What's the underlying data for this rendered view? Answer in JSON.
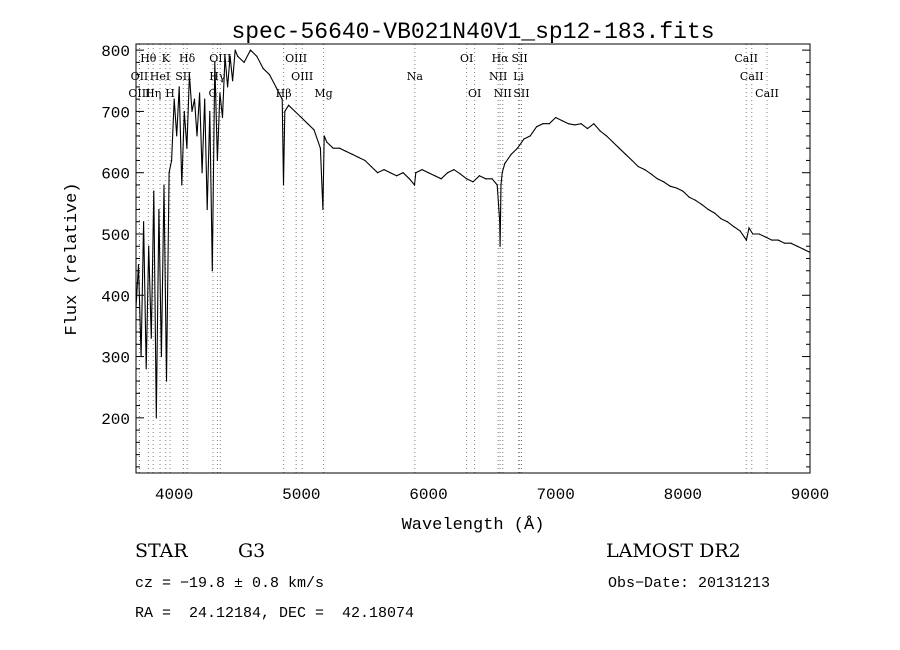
{
  "chart_data": {
    "type": "line",
    "title": "spec-56640-VB021N40V1_sp12-183.fits",
    "xlabel": "Wavelength (Å)",
    "ylabel": "Flux (relative)",
    "xlim": [
      3700,
      9000
    ],
    "ylim": [
      110,
      810
    ],
    "xticks": [
      4000,
      5000,
      6000,
      7000,
      8000,
      9000
    ],
    "yticks": [
      200,
      300,
      400,
      500,
      600,
      700,
      800
    ],
    "grid": false,
    "series": [
      {
        "color": "#000000",
        "x": [
          3700,
          3720,
          3740,
          3760,
          3780,
          3800,
          3820,
          3840,
          3860,
          3880,
          3900,
          3920,
          3940,
          3960,
          3980,
          4000,
          4020,
          4040,
          4060,
          4080,
          4100,
          4120,
          4140,
          4160,
          4180,
          4200,
          4220,
          4240,
          4260,
          4280,
          4300,
          4320,
          4340,
          4360,
          4380,
          4400,
          4420,
          4440,
          4460,
          4480,
          4500,
          4550,
          4600,
          4650,
          4700,
          4750,
          4800,
          4850,
          4860,
          4870,
          4900,
          4950,
          5000,
          5050,
          5100,
          5150,
          5170,
          5180,
          5200,
          5250,
          5300,
          5350,
          5400,
          5450,
          5500,
          5550,
          5600,
          5650,
          5700,
          5750,
          5800,
          5850,
          5890,
          5900,
          5950,
          6000,
          6050,
          6100,
          6150,
          6200,
          6250,
          6300,
          6350,
          6400,
          6450,
          6500,
          6540,
          6560,
          6563,
          6570,
          6580,
          6600,
          6650,
          6700,
          6750,
          6800,
          6850,
          6900,
          6950,
          7000,
          7050,
          7100,
          7150,
          7200,
          7250,
          7300,
          7350,
          7400,
          7450,
          7500,
          7550,
          7600,
          7650,
          7700,
          7750,
          7800,
          7850,
          7900,
          7950,
          8000,
          8050,
          8100,
          8150,
          8200,
          8250,
          8300,
          8350,
          8400,
          8450,
          8500,
          8520,
          8550,
          8600,
          8650,
          8700,
          8750,
          8800,
          8850,
          8900,
          8950,
          9000
        ],
        "values": [
          380,
          450,
          300,
          520,
          280,
          480,
          330,
          570,
          200,
          540,
          300,
          580,
          260,
          600,
          620,
          720,
          660,
          740,
          580,
          700,
          640,
          760,
          700,
          720,
          660,
          730,
          600,
          720,
          540,
          700,
          440,
          780,
          620,
          730,
          690,
          790,
          740,
          790,
          750,
          800,
          790,
          780,
          800,
          790,
          770,
          760,
          740,
          720,
          580,
          700,
          710,
          700,
          690,
          680,
          670,
          640,
          540,
          660,
          650,
          640,
          640,
          635,
          630,
          625,
          620,
          610,
          600,
          605,
          600,
          595,
          600,
          590,
          580,
          600,
          605,
          600,
          595,
          590,
          600,
          605,
          598,
          590,
          585,
          595,
          590,
          590,
          580,
          520,
          480,
          580,
          600,
          615,
          630,
          640,
          655,
          660,
          675,
          680,
          680,
          690,
          685,
          680,
          678,
          680,
          672,
          680,
          668,
          660,
          650,
          640,
          630,
          620,
          610,
          605,
          598,
          590,
          585,
          578,
          575,
          570,
          560,
          555,
          548,
          540,
          534,
          525,
          520,
          512,
          505,
          490,
          510,
          500,
          500,
          495,
          490,
          490,
          485,
          485,
          480,
          475,
          470
        ]
      }
    ],
    "lines": [
      {
        "label": "Hθ",
        "x": 3797,
        "row": 0,
        "color": "#000000"
      },
      {
        "label": "K",
        "x": 3934,
        "row": 0,
        "color": "#000000"
      },
      {
        "label": "Hδ",
        "x": 4102,
        "row": 0,
        "color": "#000000"
      },
      {
        "label": "OIII",
        "x": 4363,
        "row": 0,
        "color": "#000000"
      },
      {
        "label": "OIII",
        "x": 4959,
        "row": 0,
        "color": "#000000"
      },
      {
        "label": "OI",
        "x": 6300,
        "row": 0,
        "color": "#000000"
      },
      {
        "label": "Hα",
        "x": 6563,
        "row": 0,
        "color": "#000000"
      },
      {
        "label": "SII",
        "x": 6717,
        "row": 0,
        "color": "#000000"
      },
      {
        "label": "CaII",
        "x": 8498,
        "row": 0,
        "color": "#000000"
      },
      {
        "label": "OII",
        "x": 3727,
        "row": 1,
        "color": "#000000"
      },
      {
        "label": "HeI",
        "x": 3889,
        "row": 1,
        "color": "#000000"
      },
      {
        "label": "SII",
        "x": 4072,
        "row": 1,
        "color": "#000000"
      },
      {
        "label": "Hγ",
        "x": 4340,
        "row": 1,
        "color": "#000000"
      },
      {
        "label": "OIII",
        "x": 5007,
        "row": 1,
        "color": "#000000"
      },
      {
        "label": "Na",
        "x": 5893,
        "row": 1,
        "color": "#000000"
      },
      {
        "label": "NII",
        "x": 6548,
        "row": 1,
        "color": "#000000"
      },
      {
        "label": "Li",
        "x": 6708,
        "row": 1,
        "color": "#000000"
      },
      {
        "label": "CaII",
        "x": 8542,
        "row": 1,
        "color": "#000000"
      },
      {
        "label": "OIII",
        "x": 3727,
        "row": 2,
        "color": "#000000"
      },
      {
        "label": "Hη",
        "x": 3835,
        "row": 2,
        "color": "#000000"
      },
      {
        "label": "H",
        "x": 3968,
        "row": 2,
        "color": "#000000"
      },
      {
        "label": "G",
        "x": 4305,
        "row": 2,
        "color": "#000000"
      },
      {
        "label": "Hβ",
        "x": 4861,
        "row": 2,
        "color": "#000000"
      },
      {
        "label": "Mg",
        "x": 5175,
        "row": 2,
        "color": "#000000"
      },
      {
        "label": "OI",
        "x": 6363,
        "row": 2,
        "color": "#000000"
      },
      {
        "label": "NII",
        "x": 6584,
        "row": 2,
        "color": "#000000"
      },
      {
        "label": "SII",
        "x": 6731,
        "row": 2,
        "color": "#000000"
      },
      {
        "label": "CaII",
        "x": 8662,
        "row": 2,
        "color": "#000000"
      }
    ]
  },
  "info": {
    "object_type": "STAR",
    "object_class": "G3",
    "survey": "LAMOST DR2",
    "cz": "cz = −19.8 ± 0.8 km/s",
    "obs_date": "Obs−Date: 20131213",
    "coords": "RA =  24.12184, DEC =  42.18074"
  },
  "colors": {
    "emission_line": "#e06a6a",
    "absorption_line": "#808080"
  }
}
